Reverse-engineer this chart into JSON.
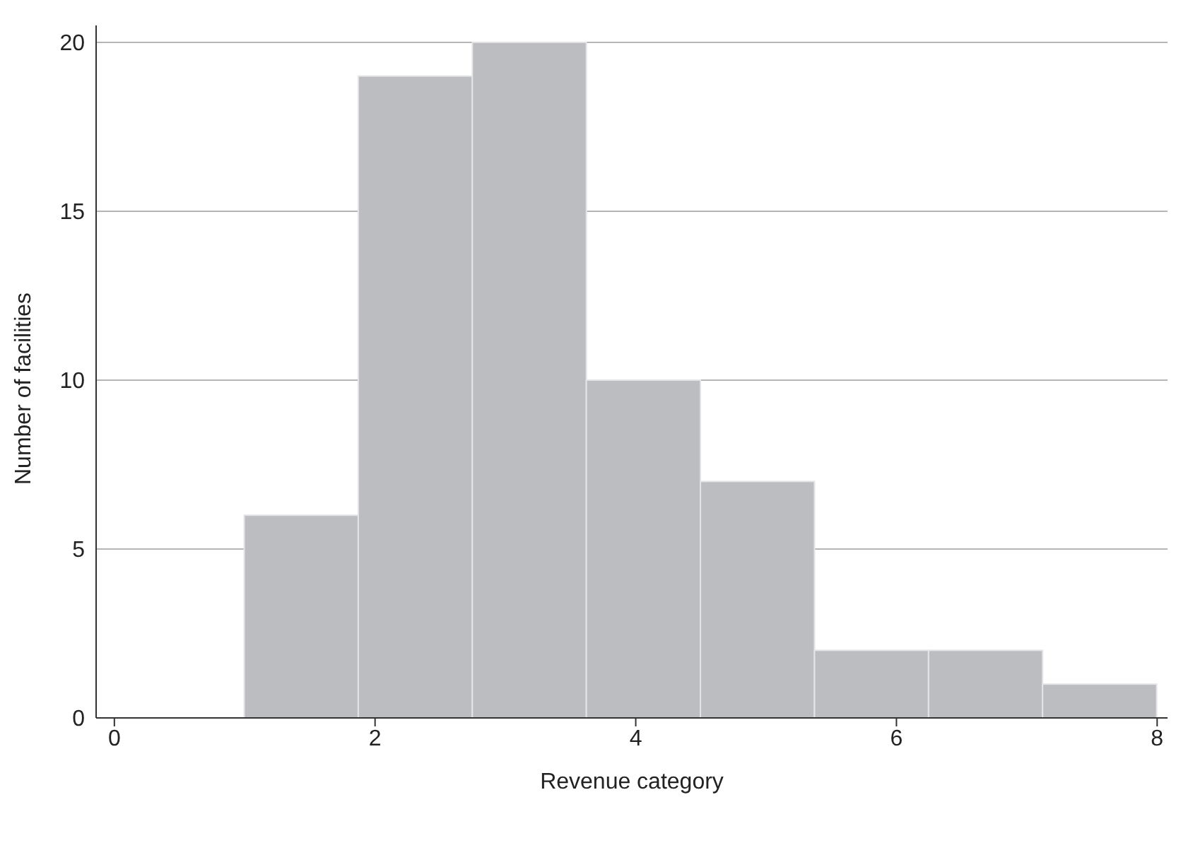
{
  "chart_data": {
    "type": "histogram",
    "xlabel": "Revenue category",
    "ylabel": "Number of facilities",
    "bins": [
      1,
      1.875,
      2.75,
      3.625,
      4.5,
      5.375,
      6.25,
      7.125,
      8
    ],
    "values": [
      6,
      19,
      20,
      10,
      7,
      2,
      2,
      1
    ],
    "color": "#bcbdc1",
    "xlim": [
      -0.14,
      8.08
    ],
    "xticks": [
      0,
      2,
      4,
      6,
      8
    ],
    "ylim": [
      0,
      20.5
    ],
    "yticks": [
      0,
      5,
      10,
      15,
      20
    ],
    "grid": "y"
  }
}
